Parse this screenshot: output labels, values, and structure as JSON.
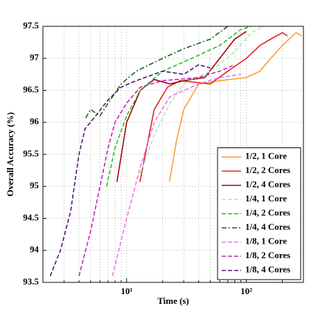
{
  "chart_data": {
    "type": "line",
    "xlabel": "Time (s)",
    "ylabel": "Overall Accuracy (%)",
    "xscale": "log",
    "xlim": [
      2,
      300
    ],
    "ylim": [
      93.5,
      97.5
    ],
    "xticks": [
      {
        "value": 10,
        "label": "10¹"
      },
      {
        "value": 100,
        "label": "10²"
      }
    ],
    "xminorticks": [
      3,
      4,
      5,
      6,
      7,
      8,
      9,
      20,
      30,
      40,
      50,
      60,
      70,
      80,
      90,
      200,
      300
    ],
    "yticks": [
      93.5,
      94,
      94.5,
      95,
      95.5,
      96,
      96.5,
      97,
      97.5
    ],
    "grid": true,
    "legend": "lower right",
    "series": [
      {
        "name": "1/2, 1 Core",
        "color": "#f5a030",
        "dash": "solid",
        "x": [
          22.8,
          26,
          30,
          40,
          60,
          100,
          130,
          160,
          200,
          260,
          290
        ],
        "values": [
          95.07,
          95.7,
          96.2,
          96.6,
          96.65,
          96.7,
          96.8,
          97.0,
          97.2,
          97.4,
          97.35
        ]
      },
      {
        "name": "1/2, 2 Cores",
        "color": "#e02020",
        "dash": "solid",
        "x": [
          12.9,
          17,
          22,
          28,
          50,
          70,
          100,
          130,
          160,
          200,
          220
        ],
        "values": [
          95.07,
          96.2,
          96.55,
          96.65,
          96.6,
          96.8,
          97.0,
          97.2,
          97.3,
          97.4,
          97.35
        ]
      },
      {
        "name": "1/2, 4 Cores",
        "color": "#a00000",
        "dash": "solid",
        "x": [
          8.3,
          10,
          13,
          17,
          23,
          30,
          45,
          60,
          80,
          100
        ],
        "values": [
          95.07,
          96.0,
          96.5,
          96.67,
          96.6,
          96.65,
          96.7,
          97.0,
          97.3,
          97.42
        ]
      },
      {
        "name": "1/4, 1 Core",
        "color": "#a8f0a8",
        "dash": "dashed",
        "x": [
          13,
          17,
          23,
          30,
          50,
          80,
          110,
          140
        ],
        "values": [
          95.2,
          95.8,
          96.3,
          96.6,
          96.8,
          97.1,
          97.4,
          97.5
        ]
      },
      {
        "name": "1/4, 2 Cores",
        "color": "#20c020",
        "dash": "dashed",
        "x": [
          6.8,
          8,
          10,
          13,
          20,
          35,
          60,
          90,
          110
        ],
        "values": [
          95.0,
          95.6,
          96.1,
          96.5,
          96.8,
          97.0,
          97.2,
          97.45,
          97.5
        ]
      },
      {
        "name": "1/4, 4 Cores",
        "color": "#106010",
        "dash": "dashdot",
        "x": [
          4.56,
          5,
          6,
          7,
          9,
          12,
          20,
          30,
          50,
          70
        ],
        "values": [
          96.07,
          96.2,
          96.1,
          96.3,
          96.6,
          96.8,
          97.0,
          97.15,
          97.3,
          97.5
        ]
      },
      {
        "name": "1/8, 1 Core",
        "color": "#f070f0",
        "dash": "dashed",
        "x": [
          7.6,
          10,
          13,
          17,
          23,
          40,
          60,
          90
        ],
        "values": [
          93.6,
          94.5,
          95.3,
          96.0,
          96.4,
          96.6,
          96.7,
          96.75
        ]
      },
      {
        "name": "1/8, 2 Cores",
        "color": "#c020c0",
        "dash": "dashed",
        "x": [
          4.0,
          5,
          6,
          7,
          8,
          10,
          13,
          20,
          40,
          60,
          80
        ],
        "values": [
          93.6,
          94.3,
          95.0,
          95.6,
          96.0,
          96.3,
          96.55,
          96.65,
          96.7,
          96.8,
          96.9
        ]
      },
      {
        "name": "1/8, 4 Cores",
        "color": "#501070",
        "dash": "dashed",
        "x": [
          2.3,
          2.8,
          3.4,
          4,
          4.5,
          5.5,
          7,
          9,
          12,
          20,
          30,
          40,
          50
        ],
        "values": [
          93.6,
          94.0,
          94.6,
          95.5,
          95.9,
          96.1,
          96.35,
          96.55,
          96.65,
          96.8,
          96.75,
          96.9,
          96.85
        ]
      }
    ]
  }
}
